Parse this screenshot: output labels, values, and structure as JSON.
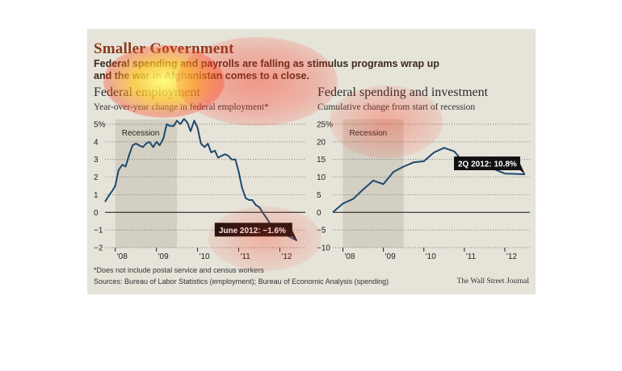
{
  "headline": "Smaller Government",
  "deck": [
    "Federal spending and payrolls are falling as stimulus programs wrap up",
    "and the war in Afghanistan comes to a close."
  ],
  "footnote": "*Does not include postal service and census workers",
  "sources": "Sources: Bureau of Labor Statistics (employment); Bureau of Economic Analysis (spending)",
  "credit": "The Wall Street Journal",
  "colors": {
    "line": "#1c4a6e",
    "recession": "#d3cfc2",
    "background": "#e6e3d9",
    "headline": "#8a3a1a",
    "callout": "#111111"
  },
  "chart_data": [
    {
      "type": "line",
      "title": "Federal employment",
      "subtitle": "Year-over-year change in federal employment*",
      "ylim": [
        -2,
        5
      ],
      "yticks": [
        5,
        4,
        3,
        2,
        1,
        0,
        -1,
        -2
      ],
      "ytick_labels": [
        "5%",
        "4",
        "3",
        "2",
        "1",
        "0",
        "−1",
        "−2"
      ],
      "xticks": [
        2008,
        2009,
        2010,
        2011,
        2012
      ],
      "xtick_labels": [
        "'08",
        "'09",
        "'10",
        "'11",
        "'12"
      ],
      "xlim": [
        2007.75,
        2012.62
      ],
      "grid": true,
      "recession": {
        "label": "Recession",
        "start": 2008.0,
        "end": 2009.5
      },
      "callout": "June 2012: −1.6%",
      "series": [
        {
          "x": [
            2007.75,
            2007.83,
            2007.92,
            2008.0,
            2008.08,
            2008.17,
            2008.25,
            2008.33,
            2008.42,
            2008.5,
            2008.58,
            2008.67,
            2008.75,
            2008.83,
            2008.92,
            2009.0,
            2009.08,
            2009.17,
            2009.25,
            2009.33,
            2009.42,
            2009.5,
            2009.58,
            2009.67,
            2009.75,
            2009.83,
            2009.92,
            2010.0,
            2010.08,
            2010.17,
            2010.25,
            2010.33,
            2010.42,
            2010.5,
            2010.58,
            2010.67,
            2010.75,
            2010.83,
            2010.92,
            2011.0,
            2011.08,
            2011.17,
            2011.25,
            2011.33,
            2011.42,
            2011.5,
            2011.58,
            2011.67,
            2011.75,
            2011.83,
            2011.92,
            2012.0,
            2012.08,
            2012.17,
            2012.25,
            2012.33,
            2012.42
          ],
          "y": [
            0.6,
            0.9,
            1.2,
            1.5,
            2.4,
            2.7,
            2.6,
            3.2,
            3.8,
            3.9,
            3.8,
            3.7,
            3.9,
            4.0,
            3.7,
            4.0,
            3.8,
            4.2,
            5.0,
            4.9,
            4.9,
            5.2,
            5.0,
            5.3,
            5.1,
            4.6,
            5.2,
            4.8,
            3.9,
            3.7,
            3.9,
            3.4,
            3.5,
            3.1,
            3.2,
            3.3,
            3.2,
            3.0,
            3.0,
            2.3,
            1.4,
            0.8,
            0.7,
            0.7,
            0.4,
            0.3,
            0.0,
            -0.3,
            -0.6,
            -0.8,
            -0.9,
            -1.0,
            -1.2,
            -1.3,
            -1.4,
            -1.5,
            -1.6
          ]
        }
      ]
    },
    {
      "type": "line",
      "title": "Federal spending and investment",
      "subtitle": "Cumulative change from start of recession",
      "ylim": [
        -10,
        25
      ],
      "yticks": [
        25,
        20,
        15,
        10,
        5,
        0,
        -5,
        -10
      ],
      "ytick_labels": [
        "25%",
        "20",
        "15",
        "10",
        "5",
        "0",
        "−5",
        "−10"
      ],
      "xticks": [
        2008,
        2009,
        2010,
        2011,
        2012
      ],
      "xtick_labels": [
        "'08",
        "'09",
        "'10",
        "'11",
        "'12"
      ],
      "xlim": [
        2007.75,
        2012.62
      ],
      "grid": true,
      "recession": {
        "label": "Recession",
        "start": 2008.0,
        "end": 2009.5
      },
      "callout": "2Q 2012: 10.8%",
      "series": [
        {
          "x": [
            2007.75,
            2008.0,
            2008.25,
            2008.5,
            2008.75,
            2009.0,
            2009.25,
            2009.5,
            2009.75,
            2010.0,
            2010.25,
            2010.5,
            2010.75,
            2011.0,
            2011.25,
            2011.5,
            2011.75,
            2012.0,
            2012.25,
            2012.5
          ],
          "y": [
            0.0,
            2.5,
            3.8,
            6.5,
            9.0,
            8.0,
            11.5,
            13.0,
            14.2,
            14.5,
            17.0,
            18.3,
            17.3,
            14.0,
            14.6,
            13.5,
            12.2,
            11.0,
            10.9,
            10.8
          ]
        }
      ]
    }
  ]
}
